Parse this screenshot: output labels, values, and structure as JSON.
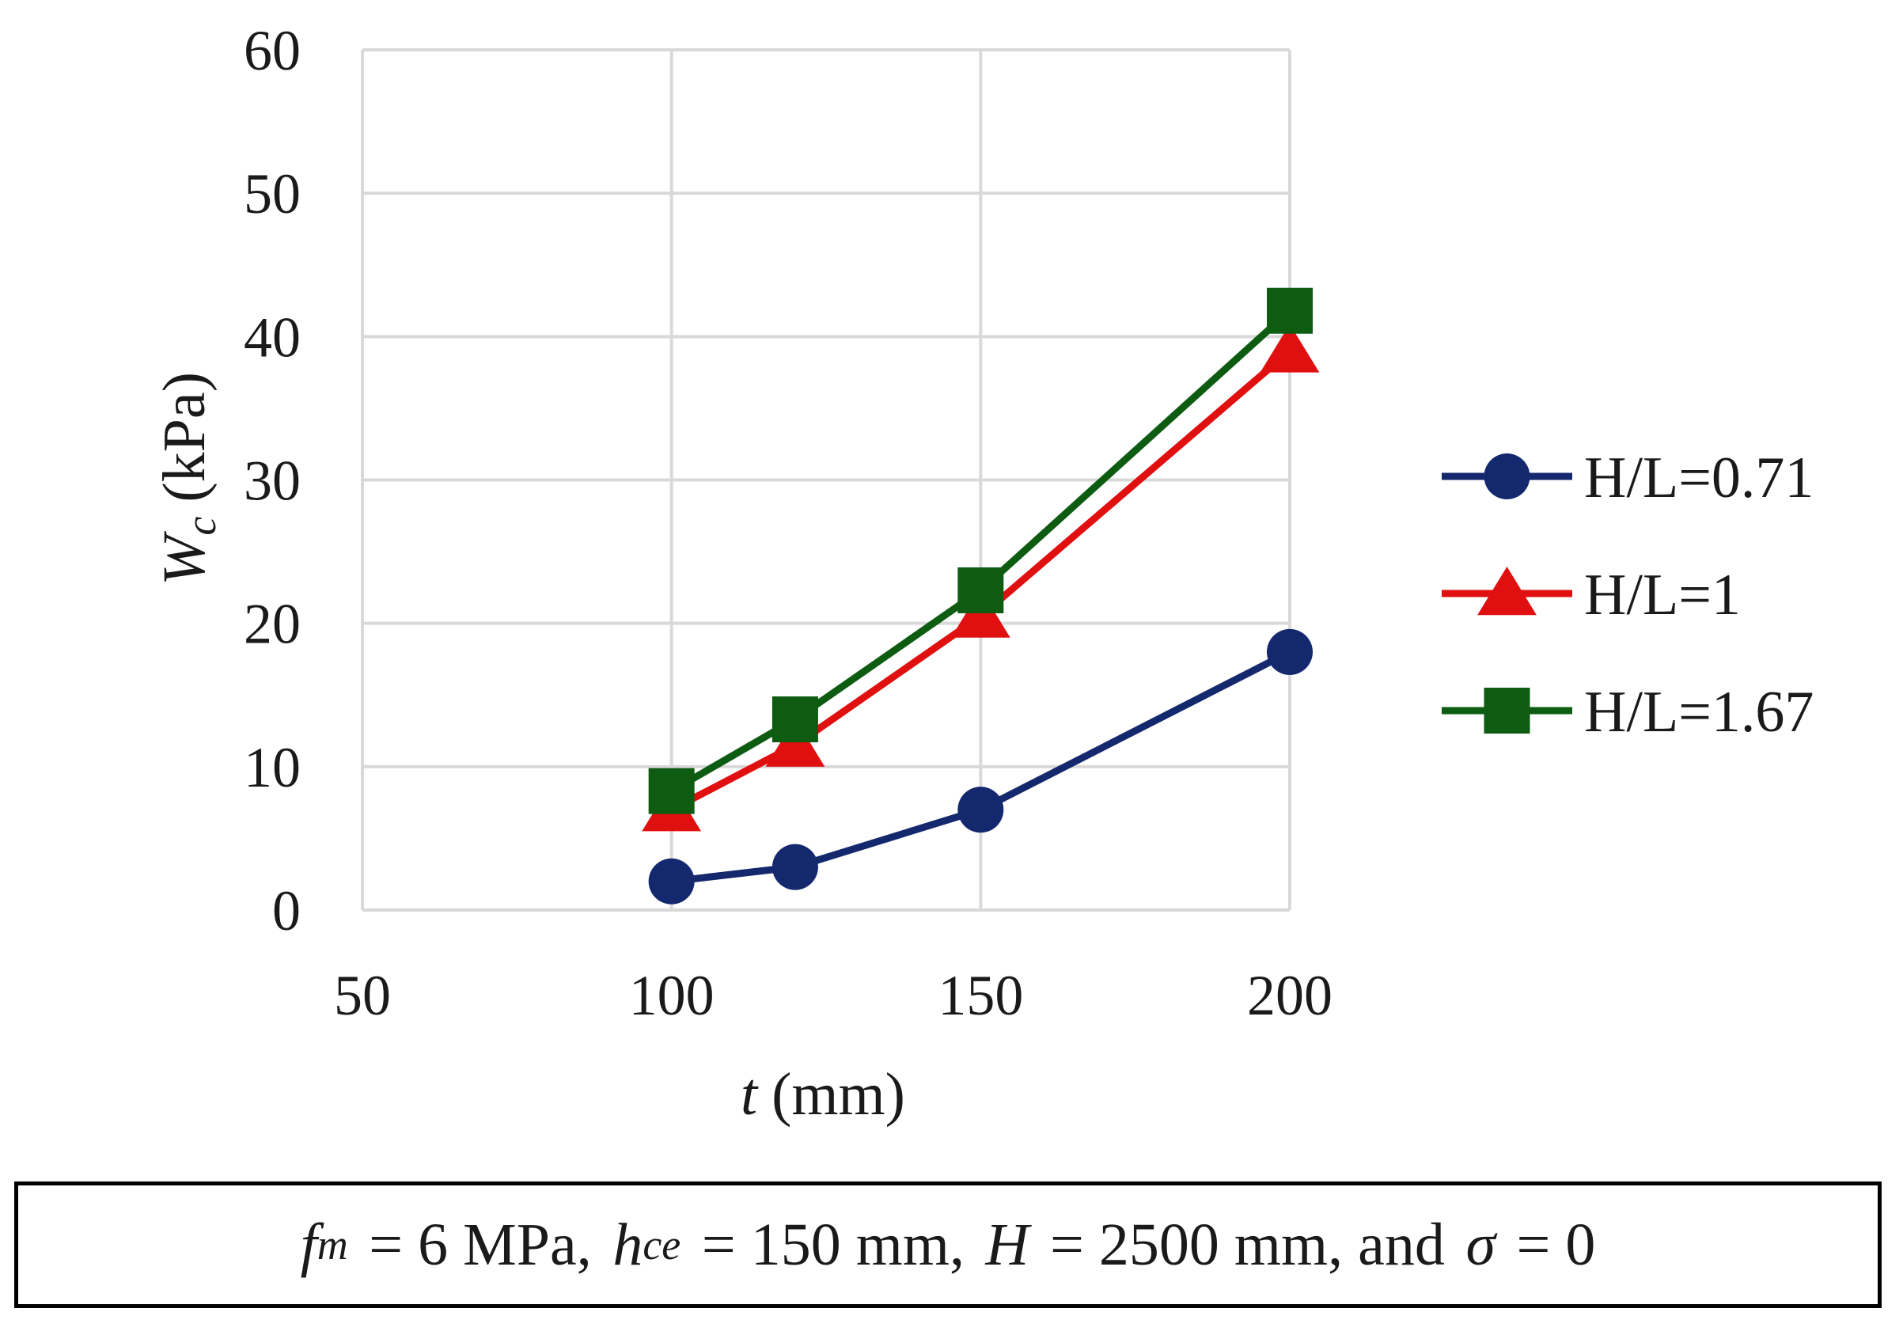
{
  "chart_data": {
    "type": "line",
    "x": [
      100,
      120,
      150,
      200
    ],
    "series": [
      {
        "name": "H/L=0.71",
        "values": [
          2,
          3,
          7,
          18
        ],
        "color": "#14286e",
        "marker": "circle"
      },
      {
        "name": "H/L=1",
        "values": [
          7,
          11.5,
          20.5,
          39
        ],
        "color": "#e01010",
        "marker": "triangle"
      },
      {
        "name": "H/L=1.67",
        "values": [
          8.3,
          13.3,
          22.3,
          41.8
        ],
        "color": "#0d5c12",
        "marker": "square"
      }
    ],
    "xlabel": {
      "var": "t",
      "unit": "(mm)"
    },
    "ylabel": {
      "var": "W",
      "sub": "c",
      "unit": "(kPa)"
    },
    "xlim": [
      50,
      200
    ],
    "ylim": [
      0,
      60
    ],
    "xticks": [
      "50",
      "100",
      "150",
      "200"
    ],
    "yticks": [
      "0",
      "10",
      "20",
      "30",
      "40",
      "50",
      "60"
    ],
    "grid": true,
    "legend_position": "right"
  },
  "caption": {
    "fm_var": "f",
    "fm_sub": "m",
    "fm_val": "= 6 MPa,",
    "hce_var": "h",
    "hce_sub": "ce",
    "hce_val": "= 150 mm,",
    "h_var": "H",
    "h_val": "= 2500 mm, and",
    "sigma_var": "σ",
    "sigma_val": "= 0"
  }
}
